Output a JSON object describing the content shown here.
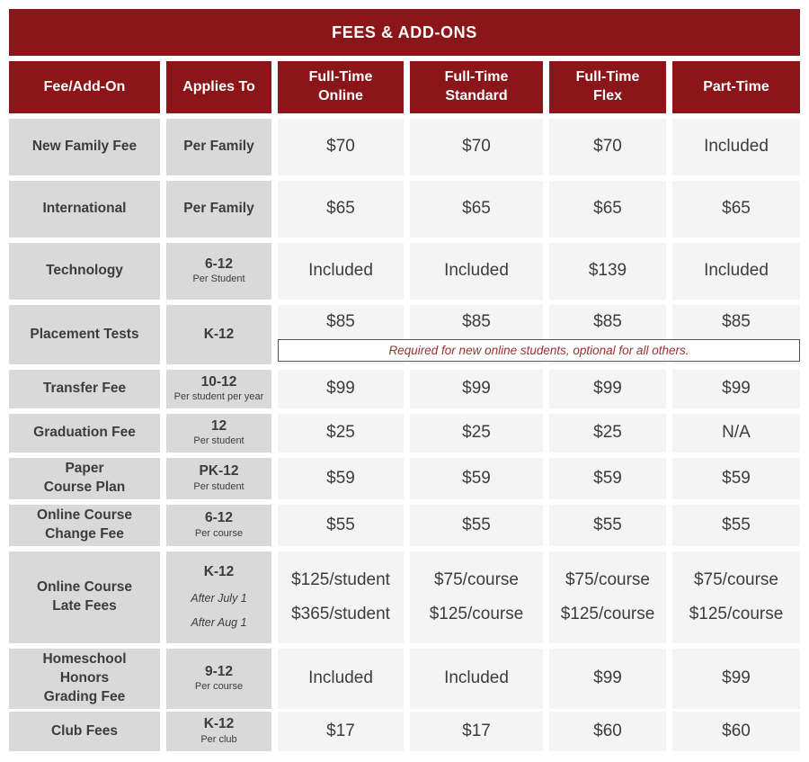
{
  "title": "FEES & ADD-ONS",
  "colors": {
    "maroon": "#8b1619",
    "header_text": "#ffffff",
    "label_bg": "#d9d9d9",
    "value_bg": "#f4f4f4",
    "body_text": "#3c3c3c",
    "note_text": "#9b3030"
  },
  "columns": [
    "Fee/Add-On",
    "Applies To",
    "Full-Time\nOnline",
    "Full-Time\nStandard",
    "Full-Time\nFlex",
    "Part-Time"
  ],
  "rows": [
    {
      "fee": "New Family Fee",
      "applies": "Per Family",
      "values": [
        "$70",
        "$70",
        "$70",
        "Included"
      ]
    },
    {
      "fee": "International",
      "applies": "Per Family",
      "values": [
        "$65",
        "$65",
        "$65",
        "$65"
      ]
    },
    {
      "fee": "Technology",
      "applies": "6-12",
      "applies_sub": [
        "Per Student"
      ],
      "values": [
        "Included",
        "Included",
        "$139",
        "Included"
      ]
    },
    {
      "fee": "Placement Tests",
      "applies": "K-12",
      "values": [
        "$85",
        "$85",
        "$85",
        "$85"
      ],
      "note": "Required for new online students, optional for all others."
    },
    {
      "fee": "Transfer Fee",
      "applies": "10-12",
      "applies_sub": [
        "Per student per year"
      ],
      "values": [
        "$99",
        "$99",
        "$99",
        "$99"
      ]
    },
    {
      "fee": "Graduation Fee",
      "applies": "12",
      "applies_sub": [
        "Per student"
      ],
      "values": [
        "$25",
        "$25",
        "$25",
        "N/A"
      ]
    },
    {
      "fee": "Paper\nCourse Plan",
      "applies": "PK-12",
      "applies_sub": [
        "Per student"
      ],
      "values": [
        "$59",
        "$59",
        "$59",
        "$59"
      ]
    },
    {
      "fee": "Online Course\nChange Fee",
      "applies": "6-12",
      "applies_sub": [
        "Per course"
      ],
      "values": [
        "$55",
        "$55",
        "$55",
        "$55"
      ]
    },
    {
      "fee": "Online Course\nLate Fees",
      "applies": "K-12",
      "applies_sub_italic": [
        "After July 1",
        "After Aug 1"
      ],
      "values": [
        [
          "$125/student",
          "$365/student"
        ],
        [
          "$75/course",
          "$125/course"
        ],
        [
          "$75/course",
          "$125/course"
        ],
        [
          "$75/course",
          "$125/course"
        ]
      ]
    },
    {
      "fee": "Homeschool\nHonors\nGrading Fee",
      "applies": "9-12",
      "applies_sub": [
        "Per course"
      ],
      "values": [
        "Included",
        "Included",
        "$99",
        "$99"
      ]
    },
    {
      "fee": "Club Fees",
      "applies": "K-12",
      "applies_sub": [
        "Per club"
      ],
      "values": [
        "$17",
        "$17",
        "$60",
        "$60"
      ]
    }
  ]
}
